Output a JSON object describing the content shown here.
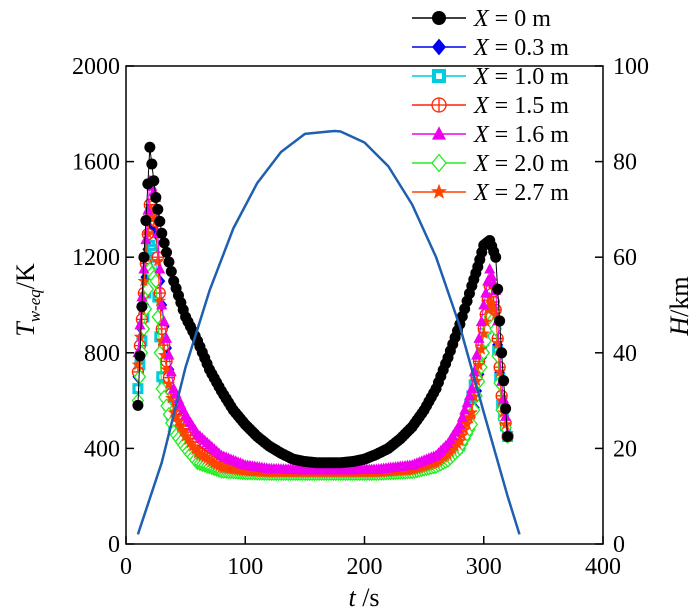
{
  "chart_data": {
    "type": "scatter",
    "title": "",
    "x_axis": {
      "label_var": "t",
      "label_unit": " /s",
      "range": [
        0,
        400
      ],
      "ticks": [
        0,
        100,
        200,
        300,
        400
      ]
    },
    "y_axis_left": {
      "label_var": "T",
      "label_sub": "w-eq",
      "label_unit": "/K",
      "range": [
        0,
        2000
      ],
      "ticks": [
        0,
        400,
        800,
        1200,
        1600,
        2000
      ]
    },
    "y_axis_right": {
      "label_var": "H",
      "label_unit": "/km",
      "range": [
        0,
        100
      ],
      "ticks": [
        0,
        20,
        40,
        60,
        80,
        100
      ]
    },
    "legend_position": "top-right",
    "series": [
      {
        "name": "X = 0 m",
        "label_var": "X",
        "label_value": " = 0 m",
        "color": "#000000",
        "marker": "circle",
        "x": [
          10,
          15,
          20,
          25,
          30,
          40,
          50,
          60,
          70,
          80,
          90,
          100,
          110,
          120,
          130,
          140,
          150,
          160,
          170,
          180,
          190,
          200,
          210,
          220,
          230,
          240,
          250,
          260,
          270,
          280,
          290,
          295,
          300,
          305,
          310,
          315,
          320
        ],
        "y": [
          580,
          1200,
          1660,
          1450,
          1300,
          1100,
          950,
          850,
          730,
          640,
          560,
          500,
          450,
          410,
          380,
          355,
          345,
          340,
          340,
          340,
          345,
          355,
          375,
          400,
          440,
          490,
          560,
          650,
          780,
          920,
          1080,
          1160,
          1250,
          1270,
          1200,
          800,
          450
        ]
      },
      {
        "name": "X = 0.3 m",
        "label_var": "X",
        "label_value": " = 0.3 m",
        "color": "#0000ee",
        "marker": "diamond",
        "x": [
          10,
          15,
          20,
          25,
          30,
          40,
          50,
          60,
          80,
          100,
          120,
          150,
          180,
          210,
          240,
          260,
          270,
          280,
          290,
          300,
          305,
          310,
          315,
          320
        ],
        "y": [
          700,
          1000,
          1350,
          1300,
          1000,
          550,
          450,
          380,
          320,
          305,
          300,
          300,
          300,
          300,
          310,
          340,
          370,
          420,
          500,
          850,
          1050,
          950,
          600,
          450
        ]
      },
      {
        "name": "X = 1.0 m",
        "label_var": "X",
        "label_value": " = 1.0 m",
        "color": "#00ccdd",
        "marker": "square",
        "x": [
          10,
          15,
          20,
          25,
          30,
          40,
          50,
          60,
          80,
          100,
          120,
          150,
          180,
          210,
          240,
          260,
          270,
          280,
          290,
          300,
          305,
          310,
          315,
          320
        ],
        "y": [
          650,
          950,
          1250,
          1200,
          700,
          500,
          420,
          360,
          315,
          303,
          300,
          300,
          300,
          300,
          308,
          335,
          365,
          410,
          620,
          850,
          1000,
          920,
          580,
          450
        ]
      },
      {
        "name": "X = 1.5 m",
        "label_var": "X",
        "label_value": " = 1.5 m",
        "color": "#ff2200",
        "marker": "circle-plus",
        "x": [
          10,
          15,
          20,
          25,
          30,
          40,
          50,
          60,
          80,
          100,
          120,
          150,
          180,
          210,
          240,
          260,
          270,
          280,
          290,
          300,
          305,
          310,
          315,
          320
        ],
        "y": [
          720,
          1050,
          1420,
          1350,
          900,
          560,
          460,
          390,
          325,
          306,
          300,
          300,
          300,
          300,
          312,
          345,
          380,
          440,
          560,
          900,
          1080,
          980,
          620,
          450
        ]
      },
      {
        "name": "X = 1.6 m",
        "label_var": "X",
        "label_value": " = 1.6 m",
        "color": "#ee00ee",
        "marker": "triangle",
        "x": [
          10,
          15,
          20,
          25,
          30,
          40,
          50,
          60,
          80,
          100,
          120,
          150,
          180,
          210,
          240,
          260,
          270,
          280,
          290,
          300,
          305,
          310,
          315,
          320
        ],
        "y": [
          800,
          1150,
          1520,
          1450,
          1000,
          650,
          540,
          460,
          370,
          330,
          315,
          310,
          310,
          312,
          330,
          370,
          420,
          500,
          650,
          1000,
          1150,
          1060,
          680,
          460
        ]
      },
      {
        "name": "X = 2.0 m",
        "label_var": "X",
        "label_value": " = 2.0 m",
        "color": "#22ee22",
        "marker": "diamond-open",
        "x": [
          10,
          15,
          20,
          25,
          30,
          40,
          50,
          60,
          80,
          100,
          120,
          150,
          180,
          210,
          240,
          260,
          270,
          280,
          290,
          300,
          305,
          310,
          315,
          320
        ],
        "y": [
          600,
          900,
          1150,
          1100,
          650,
          470,
          400,
          340,
          305,
          298,
          295,
          295,
          295,
          295,
          302,
          325,
          350,
          400,
          500,
          800,
          950,
          900,
          560,
          450
        ]
      },
      {
        "name": "X = 2.7 m",
        "label_var": "X",
        "label_value": " = 2.7 m",
        "color": "#ff4400",
        "marker": "star",
        "x": [
          10,
          15,
          20,
          25,
          30,
          40,
          50,
          60,
          80,
          100,
          120,
          150,
          180,
          210,
          240,
          260,
          270,
          280,
          290,
          300,
          305,
          310,
          315,
          320
        ],
        "y": [
          750,
          1100,
          1400,
          1350,
          850,
          550,
          450,
          380,
          320,
          305,
          300,
          300,
          300,
          300,
          310,
          340,
          375,
          430,
          550,
          880,
          1030,
          960,
          600,
          450
        ]
      }
    ],
    "altitude_curve": {
      "name": "H",
      "color": "#1f5fb0",
      "axis": "right",
      "x": [
        10,
        30,
        50,
        70,
        90,
        110,
        130,
        150,
        170,
        175,
        180,
        200,
        220,
        240,
        260,
        280,
        300,
        320,
        330
      ],
      "y": [
        2,
        17.1,
        37,
        53,
        66,
        75.5,
        82,
        85.8,
        86.3,
        86.4,
        86.3,
        84,
        79,
        71,
        60,
        45.5,
        27.5,
        10,
        2
      ]
    }
  }
}
